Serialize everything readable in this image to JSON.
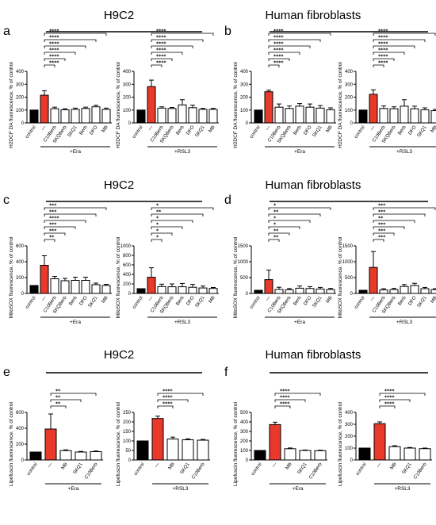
{
  "colors": {
    "control": "#000000",
    "dash": "#e8392a",
    "treated": "#ffffff",
    "stroke": "#000000"
  },
  "panels": [
    {
      "label": "a",
      "title": "H9C2",
      "top": 10
    },
    {
      "label": "b",
      "title": "Human fibroblasts",
      "top": 10
    },
    {
      "label": "c",
      "title": "H9C2",
      "top": 225
    },
    {
      "label": "d",
      "title": "Human fibroblasts",
      "top": 225
    },
    {
      "label": "e",
      "title": "H9C2",
      "top": 440
    },
    {
      "label": "f",
      "title": "Human fibroblasts",
      "top": 440
    }
  ],
  "chart_data": [
    {
      "id": "a-era",
      "type": "bar",
      "ylabel": "H2DCF DA fluorescence, % of control",
      "ylim": [
        0,
        400
      ],
      "yticks": [
        0,
        100,
        200,
        300,
        400
      ],
      "categories": [
        "control",
        "—",
        "C10Berb",
        "SKQBerb",
        "SKQ1",
        "Berb",
        "DFO",
        "MB"
      ],
      "values": [
        100,
        215,
        110,
        102,
        105,
        112,
        125,
        105
      ],
      "errors": [
        0,
        35,
        12,
        8,
        10,
        10,
        12,
        10
      ],
      "group_label": "+Era",
      "stars": [
        "****",
        "****",
        "****",
        "****",
        "****",
        "****"
      ]
    },
    {
      "id": "a-rsl3",
      "type": "bar",
      "ylabel": "H2DCF DA fluorescence, % of control",
      "ylim": [
        0,
        400
      ],
      "yticks": [
        0,
        100,
        200,
        300,
        400
      ],
      "categories": [
        "control",
        "—",
        "C10Berb",
        "SKQBerb",
        "Berb",
        "DFO",
        "SKQ1",
        "MB"
      ],
      "values": [
        100,
        282,
        115,
        112,
        140,
        118,
        105,
        105
      ],
      "errors": [
        0,
        50,
        10,
        8,
        40,
        20,
        8,
        8
      ],
      "group_label": "+RSL3",
      "stars": [
        "****",
        "****",
        "****",
        "****",
        "****",
        "****"
      ]
    },
    {
      "id": "b-era",
      "type": "bar",
      "ylabel": "H2DCF DA fluorescence, % of control",
      "ylim": [
        0,
        400
      ],
      "yticks": [
        0,
        100,
        200,
        300,
        400
      ],
      "categories": [
        "control",
        "—",
        "C10Berb",
        "SKQBerb",
        "Berb",
        "DFO",
        "SKQ1",
        "MB"
      ],
      "values": [
        100,
        242,
        122,
        112,
        130,
        122,
        115,
        102
      ],
      "errors": [
        0,
        12,
        25,
        20,
        20,
        25,
        20,
        15
      ],
      "group_label": "+Era",
      "stars": [
        "****",
        "****",
        "****",
        "****",
        "****",
        "****"
      ]
    },
    {
      "id": "b-rsl3",
      "type": "bar",
      "ylabel": "H2DCF DA fluorescence, % of control",
      "ylim": [
        0,
        400
      ],
      "yticks": [
        0,
        100,
        200,
        300,
        400
      ],
      "categories": [
        "control",
        "—",
        "C10Berb",
        "SKQBerb",
        "Berb",
        "DFO",
        "SKQ1",
        "MB"
      ],
      "values": [
        100,
        222,
        112,
        110,
        130,
        110,
        102,
        95
      ],
      "errors": [
        0,
        35,
        20,
        15,
        50,
        20,
        15,
        10
      ],
      "group_label": "+RSL3",
      "stars": [
        "****",
        "****",
        "****",
        "****",
        "****",
        "****"
      ]
    },
    {
      "id": "c-era",
      "type": "bar",
      "ylabel": "MitoSOX fluorescence, % of control",
      "ylim": [
        0,
        600
      ],
      "yticks": [
        0,
        200,
        400,
        600
      ],
      "categories": [
        "control",
        "—",
        "C10Berb",
        "SKQBerb",
        "Berb",
        "DFO",
        "SKQ1",
        "MB"
      ],
      "values": [
        100,
        355,
        185,
        160,
        165,
        165,
        110,
        100
      ],
      "errors": [
        0,
        120,
        30,
        30,
        40,
        40,
        20,
        15
      ],
      "group_label": "+Era",
      "stars": [
        "**",
        "***",
        "***",
        "****",
        "***",
        "***"
      ]
    },
    {
      "id": "c-rsl3",
      "type": "bar",
      "ylabel": "MitoSOX fluorescence, % of control",
      "ylim": [
        0,
        1000
      ],
      "yticks": [
        0,
        200,
        400,
        600,
        800,
        1000
      ],
      "categories": [
        "control",
        "—",
        "C10Berb",
        "SKQBerb",
        "Berb",
        "DFO",
        "SKQ1",
        "MB"
      ],
      "values": [
        100,
        340,
        145,
        140,
        140,
        130,
        115,
        105
      ],
      "errors": [
        0,
        200,
        50,
        60,
        70,
        60,
        40,
        20
      ],
      "group_label": "+RSL3",
      "stars": [
        "*",
        "*",
        "*",
        "*",
        "**",
        "*"
      ]
    },
    {
      "id": "d-era",
      "type": "bar",
      "ylabel": "MitoSOX fluorescence, % of control",
      "ylim": [
        0,
        1500
      ],
      "yticks": [
        0,
        500,
        1000,
        1500
      ],
      "categories": [
        "control",
        "—",
        "C10Berb",
        "SKQBerb",
        "Berb",
        "DFO",
        "SKQ1",
        "MB"
      ],
      "values": [
        100,
        435,
        125,
        115,
        165,
        155,
        140,
        120
      ],
      "errors": [
        0,
        300,
        70,
        40,
        70,
        60,
        50,
        40
      ],
      "group_label": "+Era",
      "stars": [
        "**",
        "**",
        "*",
        "*",
        "**",
        "*"
      ]
    },
    {
      "id": "d-rsl3",
      "type": "bar",
      "ylabel": "MitoSOX fluorescence, % of control",
      "ylim": [
        0,
        1500
      ],
      "yticks": [
        0,
        500,
        1000,
        1500
      ],
      "categories": [
        "control",
        "—",
        "C10Berb",
        "SKQBerb",
        "Berb",
        "DFO",
        "SKQ1",
        "MB"
      ],
      "values": [
        100,
        820,
        110,
        120,
        220,
        250,
        150,
        120
      ],
      "errors": [
        0,
        500,
        40,
        40,
        60,
        70,
        40,
        30
      ],
      "group_label": "+RSL3",
      "stars": [
        "***",
        "***",
        "***",
        "**",
        "***",
        "***"
      ]
    },
    {
      "id": "e-era",
      "type": "bar",
      "ylabel": "Lipofuscin fluorescence, % of control",
      "ylim": [
        0,
        600
      ],
      "yticks": [
        0,
        200,
        400,
        600
      ],
      "categories": [
        "control",
        "—",
        "MB",
        "SKQ1",
        "C10Berb"
      ],
      "values": [
        100,
        390,
        118,
        100,
        105
      ],
      "errors": [
        0,
        190,
        10,
        8,
        8
      ],
      "group_label": "+Era",
      "stars": [
        "**",
        "**",
        "**"
      ]
    },
    {
      "id": "e-rsl3",
      "type": "bar",
      "ylabel": "Lipofuscin fluorescence, % of control",
      "ylim": [
        0,
        250
      ],
      "yticks": [
        0,
        50,
        100,
        150,
        200,
        250
      ],
      "categories": [
        "control",
        "—",
        "MB",
        "SKQ1",
        "C10Berb"
      ],
      "values": [
        100,
        218,
        110,
        106,
        104
      ],
      "errors": [
        0,
        12,
        10,
        5,
        4
      ],
      "group_label": "+RSL3",
      "stars": [
        "****",
        "****",
        "****"
      ]
    },
    {
      "id": "f-era",
      "type": "bar",
      "ylabel": "Lipofuscin fluorescence, % of control",
      "ylim": [
        0,
        500
      ],
      "yticks": [
        0,
        100,
        200,
        300,
        400,
        500
      ],
      "categories": [
        "control",
        "—",
        "MB",
        "SKQ1",
        "C10Berb"
      ],
      "values": [
        100,
        372,
        118,
        100,
        98
      ],
      "errors": [
        0,
        25,
        8,
        5,
        5
      ],
      "group_label": "+Era",
      "stars": [
        "****",
        "****",
        "****"
      ]
    },
    {
      "id": "f-rsl3",
      "type": "bar",
      "ylabel": "Lipofuscin fluorescence, % of control",
      "ylim": [
        0,
        400
      ],
      "yticks": [
        0,
        100,
        200,
        300,
        400
      ],
      "categories": [
        "control",
        "—",
        "MB",
        "SKQ1",
        "C10Berb"
      ],
      "values": [
        100,
        305,
        112,
        100,
        95
      ],
      "errors": [
        0,
        15,
        8,
        5,
        5
      ],
      "group_label": "+RSL3",
      "stars": [
        "****",
        "****",
        "****"
      ]
    }
  ]
}
